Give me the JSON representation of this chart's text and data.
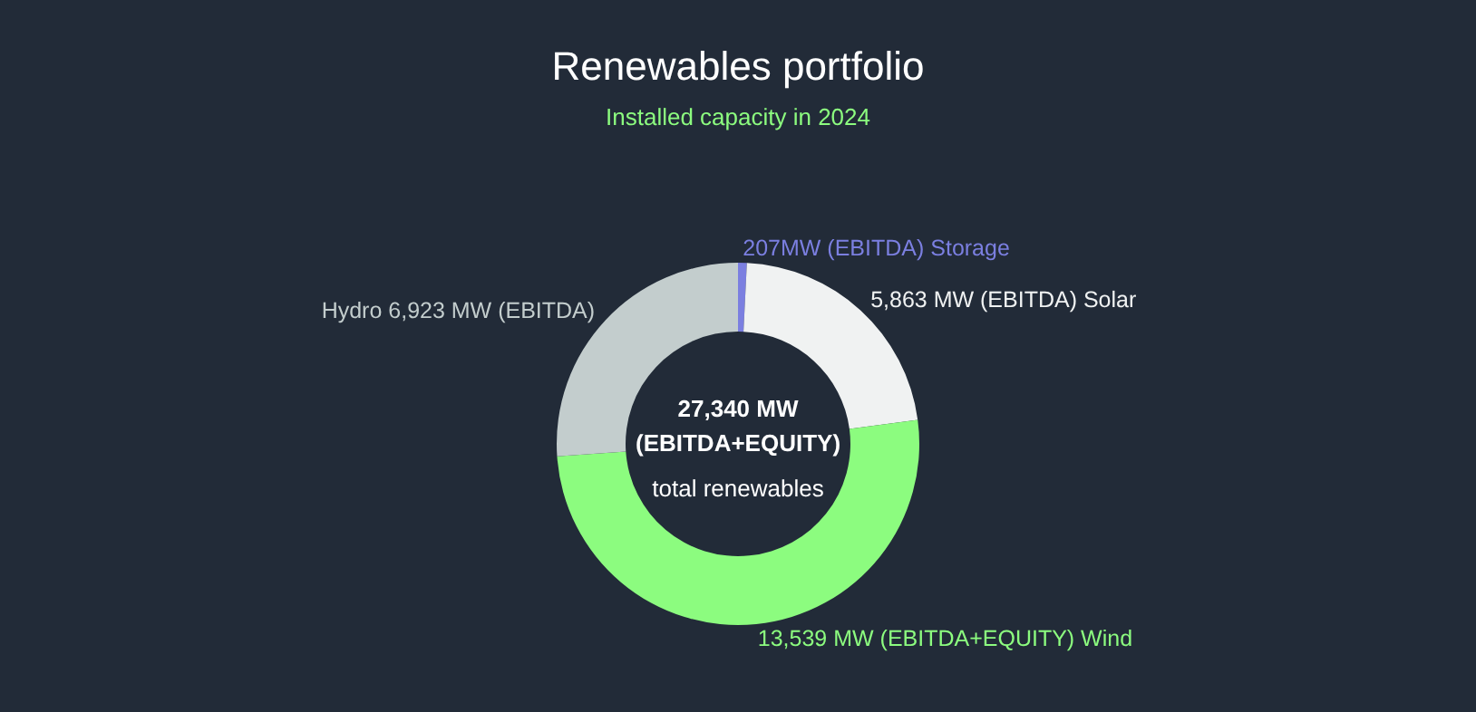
{
  "chart_data": {
    "type": "donut",
    "title": "Renewables portfolio",
    "subtitle": "Installed capacity in 2024",
    "categories": [
      "Storage",
      "Solar",
      "Wind",
      "Hydro"
    ],
    "values": [
      207,
      5863,
      13539,
      6923
    ],
    "value_labels": [
      "207MW (EBITDA)",
      "5,863 MW (EBITDA)",
      "13,539 MW (EBITDA+EQUITY)",
      "6,923 MW (EBITDA)"
    ],
    "colors": [
      "#7b7fe0",
      "#f0f2f2",
      "#8cfc7f",
      "#c3cdcd"
    ],
    "annotations": [
      "27,340 MW",
      "(EBITDA+EQUITY)",
      "total renewables"
    ],
    "legend": false
  }
}
